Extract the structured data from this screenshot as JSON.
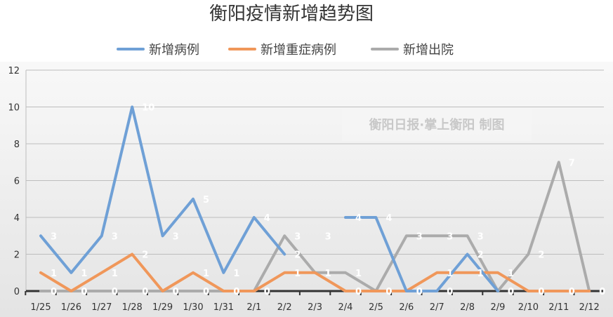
{
  "chart_data": {
    "type": "line",
    "title": "衡阳疫情新增趋势图",
    "watermark": "衡阳日报·掌上衡阳 制图",
    "categories": [
      "1/25",
      "1/26",
      "1/27",
      "1/28",
      "1/29",
      "1/30",
      "1/31",
      "2/1",
      "2/2",
      "2/3",
      "2/4",
      "2/5",
      "2/6",
      "2/7",
      "2/8",
      "2/9",
      "2/10",
      "2/11",
      "2/12"
    ],
    "ylim": [
      0,
      12
    ],
    "yticks": [
      0,
      2,
      4,
      6,
      8,
      10,
      12
    ],
    "grid": true,
    "legend_position": "top",
    "series": [
      {
        "name": "新增病例",
        "color": "#6fa0d6",
        "values": [
          3,
          1,
          3,
          10,
          3,
          5,
          1,
          4,
          2,
          null,
          4,
          4,
          0,
          0,
          2,
          0,
          null,
          null,
          null
        ],
        "labels": [
          "3",
          "1",
          "3",
          "10",
          "3",
          "5",
          "1",
          "4",
          "2",
          "3",
          "4",
          "4",
          "0",
          "0",
          "2",
          "0",
          "",
          "",
          ""
        ]
      },
      {
        "name": "新增重症病例",
        "color": "#f0975a",
        "values": [
          1,
          0,
          1,
          2,
          0,
          1,
          0,
          0,
          1,
          1,
          0,
          0,
          0,
          1,
          1,
          1,
          0,
          0,
          0
        ],
        "labels": [
          "1",
          "0",
          "1",
          "2",
          "0",
          "1",
          "0",
          "0",
          "1",
          "1",
          "0",
          "0",
          "0",
          "1",
          "1",
          "1",
          "0",
          "0",
          "0"
        ]
      },
      {
        "name": "新增出院",
        "color": "#ababab",
        "values": [
          0,
          0,
          0,
          0,
          0,
          0,
          0,
          0,
          3,
          1,
          1,
          0,
          3,
          3,
          3,
          0,
          2,
          7,
          0
        ],
        "labels": [
          "0",
          "0",
          "0",
          "0",
          "0",
          "0",
          "0",
          "0",
          "3",
          "1",
          "1",
          "0",
          "3",
          "3",
          "3",
          "0",
          "2",
          "7",
          "0"
        ]
      }
    ]
  }
}
